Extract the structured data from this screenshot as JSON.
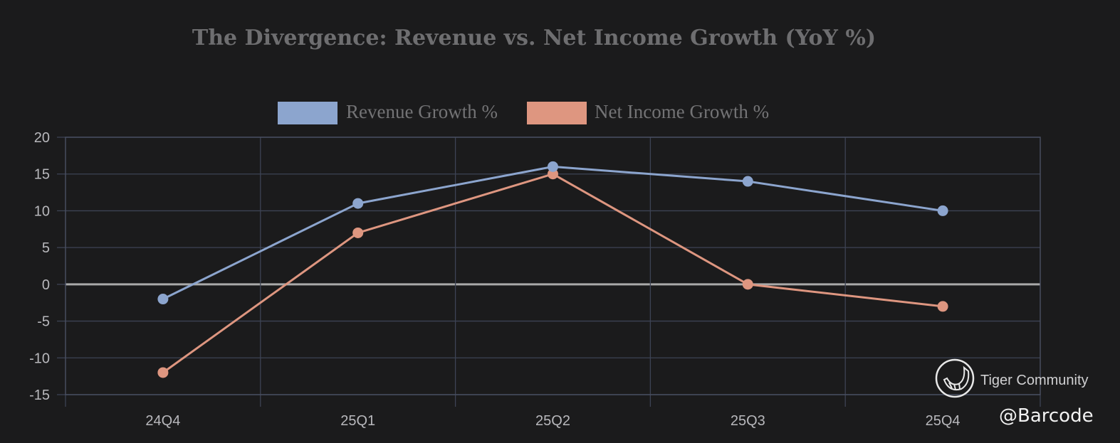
{
  "chart_data": {
    "type": "line",
    "title": "The Divergence: Revenue vs. Net Income Growth (YoY %)",
    "categories": [
      "24Q4",
      "25Q1",
      "25Q2",
      "25Q3",
      "25Q4"
    ],
    "series": [
      {
        "name": "Revenue Growth %",
        "color": "#8ca5ce",
        "values": [
          -2,
          11,
          16,
          14,
          10
        ]
      },
      {
        "name": "Net Income Growth %",
        "color": "#de9680",
        "values": [
          -12,
          7,
          15,
          0,
          -3
        ]
      }
    ],
    "ylim": [
      -15,
      20
    ],
    "yticks": [
      "20",
      "15",
      "10",
      "5",
      "0",
      "-5",
      "-10",
      "-15"
    ],
    "ytick_values": [
      20,
      15,
      10,
      5,
      0,
      -5,
      -10,
      -15
    ],
    "grid": true,
    "legend_position": "top-center",
    "xlabel": "",
    "ylabel": ""
  },
  "watermark": {
    "brand": "Tiger Community",
    "handle": "@Barcode",
    "icon": "tiger-logo-icon"
  }
}
